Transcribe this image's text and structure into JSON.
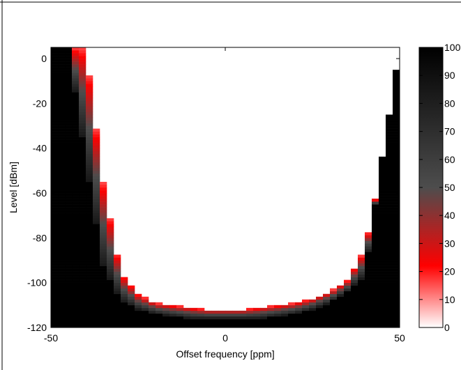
{
  "chart_data": {
    "type": "heatmap",
    "title": "",
    "xlabel": "Offset frequency [ppm]",
    "ylabel": "Level [dBm]",
    "xlim": [
      -50,
      50
    ],
    "ylim": [
      -120,
      5
    ],
    "x_ticks": [
      -50,
      0,
      50
    ],
    "x_tick_labels": [
      "-50",
      "0",
      "50"
    ],
    "y_ticks": [
      0,
      -20,
      -40,
      -60,
      -80,
      -100,
      -120
    ],
    "y_tick_labels": [
      "0",
      "-20",
      "-40",
      "-60",
      "-80",
      "-100",
      "-120"
    ],
    "colorbar": {
      "range": [
        0,
        100
      ],
      "ticks": [
        0,
        10,
        20,
        30,
        40,
        50,
        60,
        70,
        80,
        90,
        100
      ],
      "tick_labels": [
        "0",
        "10",
        "20",
        "30",
        "40",
        "50",
        "60",
        "70",
        "80",
        "90",
        "100"
      ],
      "colormap": [
        "#ffffff",
        "#ff0000",
        "#000000"
      ]
    },
    "boundary": {
      "description_values_x_ppm": [
        -50,
        -45,
        -40,
        -35,
        -30,
        -25,
        -20,
        -15,
        -10,
        -5,
        0,
        5,
        10,
        15,
        20,
        25,
        30,
        35,
        40,
        45,
        50
      ],
      "black_edge_level_dbm": [
        5,
        5,
        -45,
        -93,
        -108,
        -112,
        -114,
        -115,
        -116,
        -116,
        -116,
        -116,
        -116,
        -115,
        -114,
        -112,
        -109,
        -104,
        -97,
        -44,
        5
      ],
      "red_band_top_dbm": [
        5,
        5,
        5,
        -55,
        -95,
        -105,
        -109,
        -110,
        -111,
        -112,
        -112,
        -112,
        -111,
        -110,
        -109,
        -107,
        -104,
        -99,
        -85,
        -48,
        5
      ]
    }
  }
}
